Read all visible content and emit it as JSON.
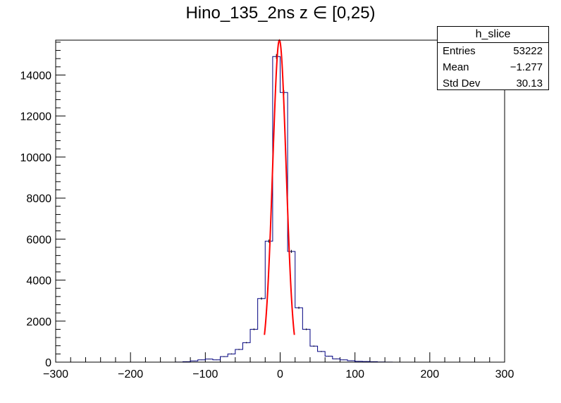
{
  "title": "Hino_135_2ns z  ∈ [0,25)",
  "stats": {
    "name": "h_slice",
    "rows": [
      {
        "key": "Entries",
        "value": "53222"
      },
      {
        "key": "Mean",
        "value": "−1.277"
      },
      {
        "key": "Std Dev",
        "value": "30.13"
      }
    ]
  },
  "chart_data": {
    "type": "histogram",
    "title": "Hino_135_2ns z  ∈ [0,25)",
    "xlim": [
      -300,
      300
    ],
    "ylim": [
      0,
      15700
    ],
    "bin_width": 10,
    "xticks": [
      -300,
      -200,
      -100,
      0,
      100,
      200,
      300
    ],
    "xtick_labels": [
      "−300",
      "−200",
      "−100",
      "0",
      "100",
      "200",
      "300"
    ],
    "yticks": [
      0,
      2000,
      4000,
      6000,
      8000,
      10000,
      12000,
      14000
    ],
    "ytick_labels": [
      "0",
      "2000",
      "4000",
      "6000",
      "8000",
      "10000",
      "12000",
      "14000"
    ],
    "bins": [
      {
        "x0": -140,
        "value": 5
      },
      {
        "x0": -130,
        "value": 20
      },
      {
        "x0": -120,
        "value": 60
      },
      {
        "x0": -110,
        "value": 110
      },
      {
        "x0": -100,
        "value": 150
      },
      {
        "x0": -90,
        "value": 110
      },
      {
        "x0": -80,
        "value": 270
      },
      {
        "x0": -70,
        "value": 400
      },
      {
        "x0": -60,
        "value": 620
      },
      {
        "x0": -50,
        "value": 950
      },
      {
        "x0": -40,
        "value": 1600
      },
      {
        "x0": -30,
        "value": 3100
      },
      {
        "x0": -20,
        "value": 5900
      },
      {
        "x0": -10,
        "value": 14900
      },
      {
        "x0": 0,
        "value": 13150
      },
      {
        "x0": 10,
        "value": 5400
      },
      {
        "x0": 20,
        "value": 2650
      },
      {
        "x0": 30,
        "value": 1600
      },
      {
        "x0": 40,
        "value": 780
      },
      {
        "x0": 50,
        "value": 520
      },
      {
        "x0": 60,
        "value": 290
      },
      {
        "x0": 70,
        "value": 160
      },
      {
        "x0": 80,
        "value": 110
      },
      {
        "x0": 90,
        "value": 70
      },
      {
        "x0": 100,
        "value": 40
      },
      {
        "x0": 110,
        "value": 30
      },
      {
        "x0": 120,
        "value": 20
      },
      {
        "x0": 130,
        "value": 10
      },
      {
        "x0": 140,
        "value": 5
      }
    ],
    "fit": {
      "type": "gaussian",
      "amplitude": 15700,
      "mean": -1,
      "sigma": 9,
      "x_range": [
        -21,
        19
      ]
    },
    "colors": {
      "histogram": "#000080",
      "fit": "#ff0000",
      "axis": "#000000"
    }
  }
}
